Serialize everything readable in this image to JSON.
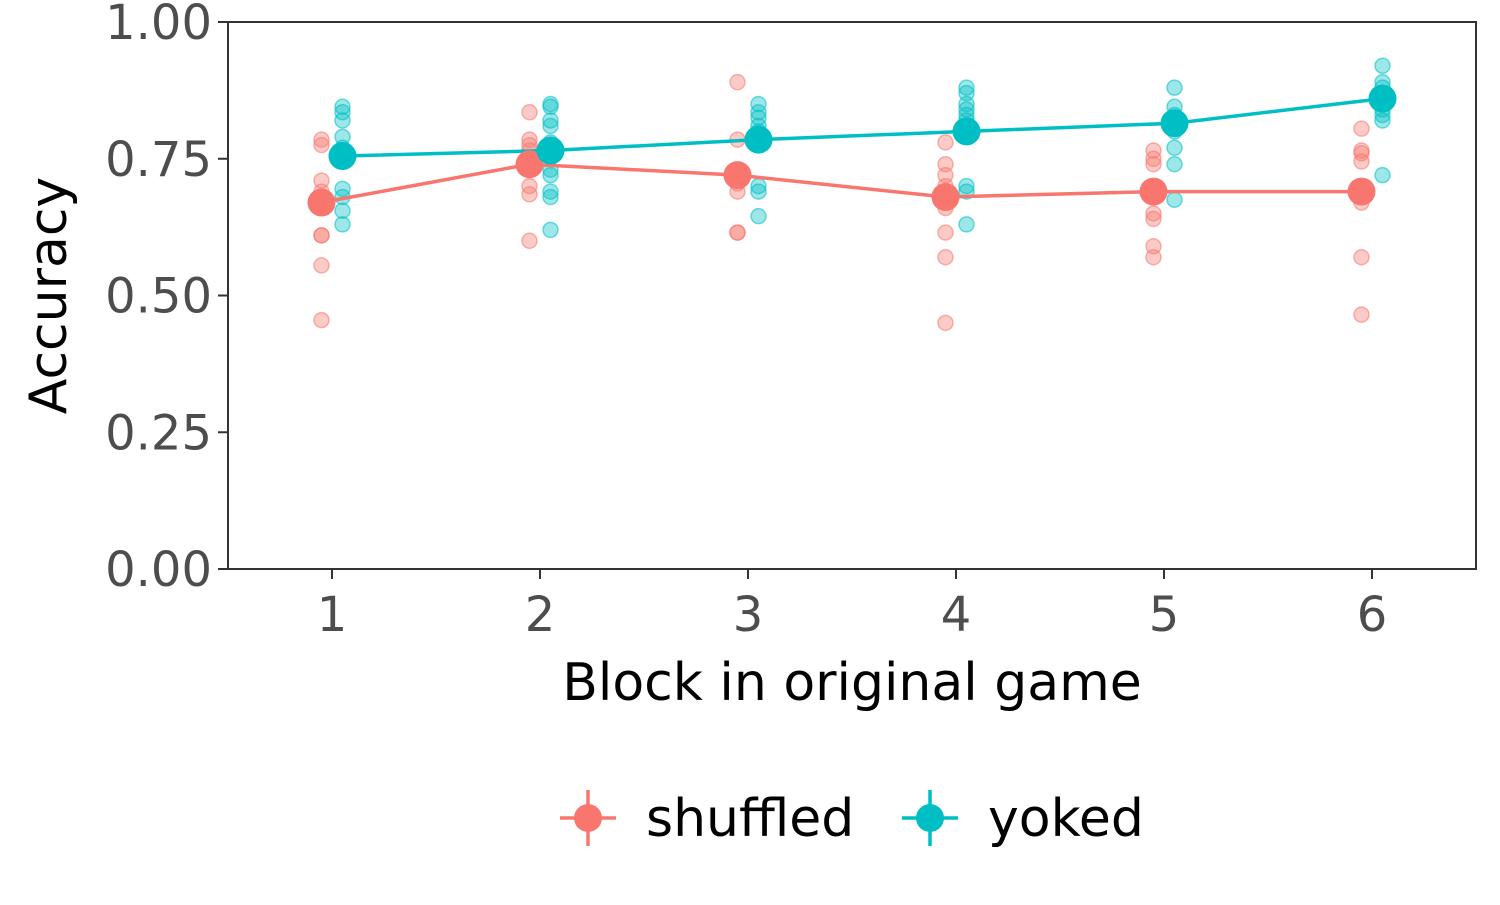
{
  "chart_data": {
    "type": "scatter",
    "title": "",
    "xlabel": "Block in original game",
    "ylabel": "Accuracy",
    "x_ticks": [
      "1",
      "2",
      "3",
      "4",
      "5",
      "6"
    ],
    "y_ticks": [
      "0.00",
      "0.25",
      "0.50",
      "0.75",
      "1.00"
    ],
    "xlim": [
      0.5,
      6.5
    ],
    "ylim": [
      0,
      1
    ],
    "grid": false,
    "legend_position": "bottom",
    "colors": {
      "shuffled": "#F8766D",
      "yoked": "#00BFC4"
    },
    "series": [
      {
        "name": "shuffled",
        "color": "#F8766D",
        "x": [
          1,
          2,
          3,
          4,
          5,
          6
        ],
        "mean": [
          0.67,
          0.74,
          0.72,
          0.68,
          0.69,
          0.69
        ],
        "points": [
          [
            0.785,
            0.775,
            0.71,
            0.69,
            0.68,
            0.665,
            0.61,
            0.61,
            0.555,
            0.455
          ],
          [
            0.835,
            0.785,
            0.775,
            0.765,
            0.745,
            0.735,
            0.7,
            0.685,
            0.6
          ],
          [
            0.89,
            0.785,
            0.73,
            0.72,
            0.705,
            0.69,
            0.615,
            0.615
          ],
          [
            0.78,
            0.74,
            0.72,
            0.7,
            0.685,
            0.67,
            0.66,
            0.615,
            0.57,
            0.45
          ],
          [
            0.765,
            0.75,
            0.74,
            0.7,
            0.69,
            0.65,
            0.64,
            0.59,
            0.57
          ],
          [
            0.805,
            0.765,
            0.76,
            0.745,
            0.7,
            0.68,
            0.67,
            0.57,
            0.465
          ]
        ]
      },
      {
        "name": "yoked",
        "color": "#00BFC4",
        "x": [
          1,
          2,
          3,
          4,
          5,
          6
        ],
        "mean": [
          0.755,
          0.765,
          0.785,
          0.8,
          0.815,
          0.86
        ],
        "points": [
          [
            0.845,
            0.835,
            0.82,
            0.79,
            0.77,
            0.695,
            0.68,
            0.655,
            0.63
          ],
          [
            0.85,
            0.845,
            0.82,
            0.81,
            0.78,
            0.73,
            0.72,
            0.69,
            0.68,
            0.62
          ],
          [
            0.85,
            0.835,
            0.825,
            0.81,
            0.8,
            0.7,
            0.69,
            0.645
          ],
          [
            0.88,
            0.87,
            0.85,
            0.84,
            0.83,
            0.82,
            0.7,
            0.69,
            0.63
          ],
          [
            0.88,
            0.845,
            0.83,
            0.82,
            0.8,
            0.77,
            0.74,
            0.675
          ],
          [
            0.92,
            0.89,
            0.88,
            0.87,
            0.84,
            0.83,
            0.82,
            0.72
          ]
        ]
      }
    ]
  }
}
